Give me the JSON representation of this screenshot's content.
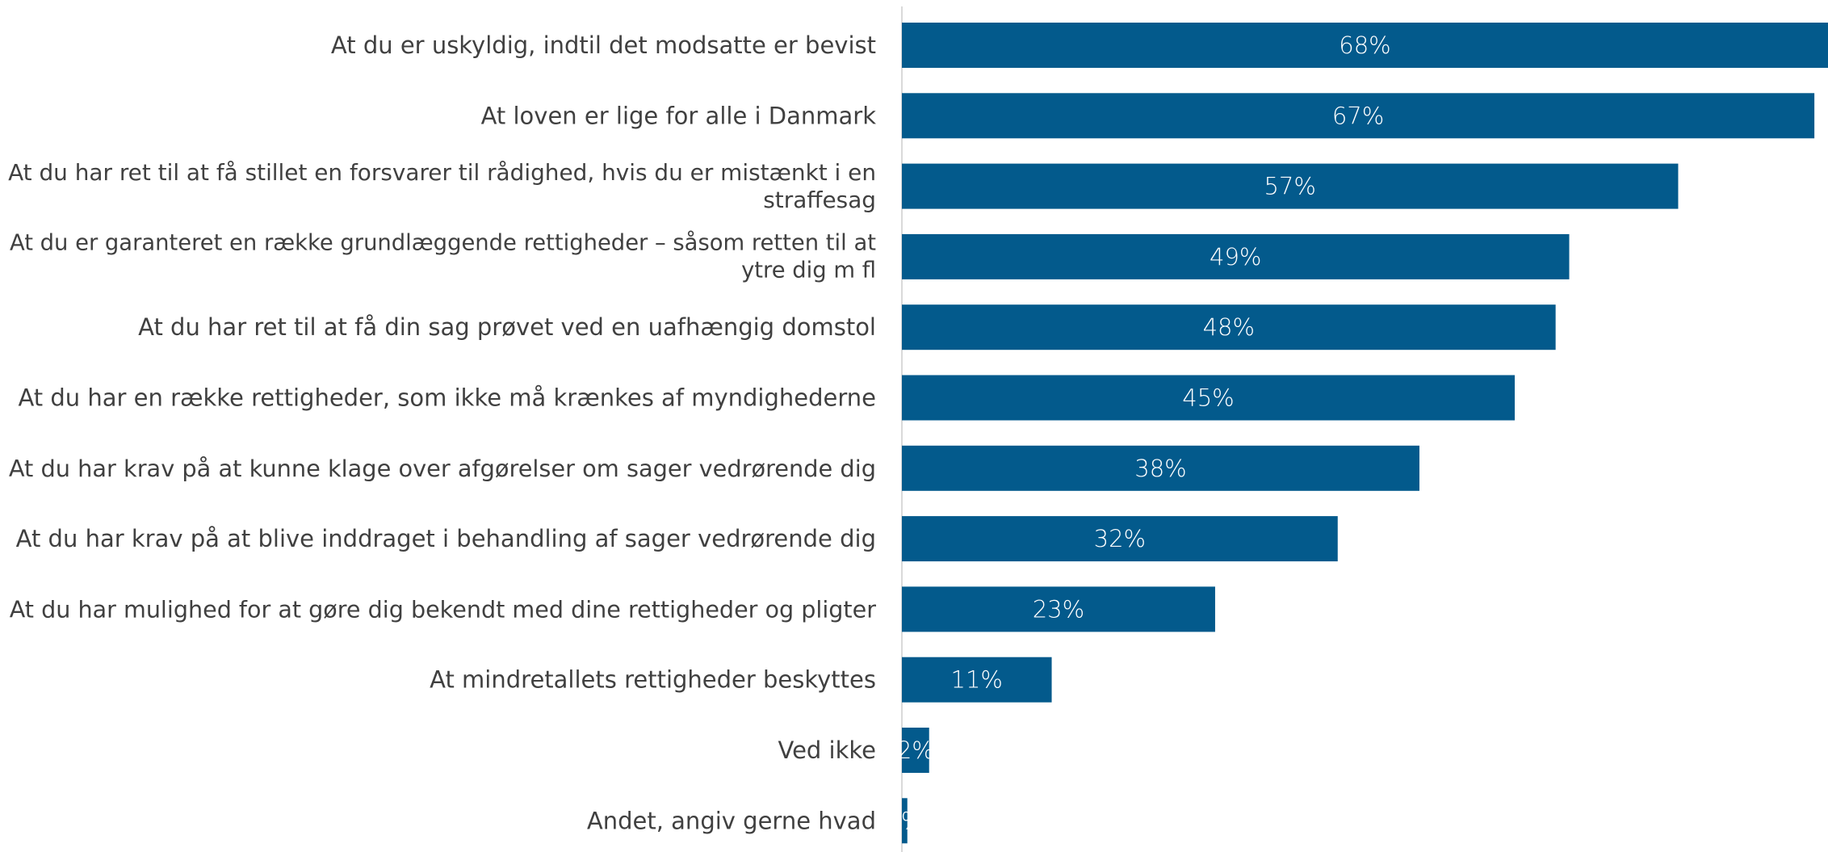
{
  "chart_data": {
    "type": "bar",
    "orientation": "horizontal",
    "title": "",
    "xlabel": "",
    "ylabel": "",
    "xlim": [
      0,
      68
    ],
    "grid": false,
    "legend": "none",
    "bar_color": "#035a8c",
    "axis_color": "#d9d9d9",
    "categories": [
      [
        "At du er uskyldig, indtil det modsatte er bevist"
      ],
      [
        "At loven er lige for alle i Danmark"
      ],
      [
        "At du har ret til at få stillet en forsvarer til rådighed, hvis du er mistænkt i en",
        "straffesag"
      ],
      [
        "At du er garanteret en række grundlæggende rettigheder – såsom retten til at",
        "ytre dig m fl"
      ],
      [
        "At du har ret til at få din sag prøvet ved en uafhængig domstol"
      ],
      [
        "At du har en række rettigheder, som ikke må krænkes af myndighederne"
      ],
      [
        "At du har krav på at kunne klage over afgørelser om sager vedrørende dig"
      ],
      [
        "At du har krav på at blive inddraget i behandling af sager vedrørende dig"
      ],
      [
        "At du har mulighed for at gøre dig bekendt med dine rettigheder og pligter"
      ],
      [
        "At mindretallets rettigheder beskyttes"
      ],
      [
        "Ved ikke"
      ],
      [
        "Andet, angiv gerne hvad"
      ]
    ],
    "values": [
      68,
      67,
      57,
      49,
      48,
      45,
      38,
      32,
      23,
      11,
      2,
      0.4
    ],
    "data_labels": [
      "68%",
      "67%",
      "57%",
      "49%",
      "48%",
      "45%",
      "38%",
      "32%",
      "23%",
      "11%",
      "2%",
      "0%"
    ]
  }
}
